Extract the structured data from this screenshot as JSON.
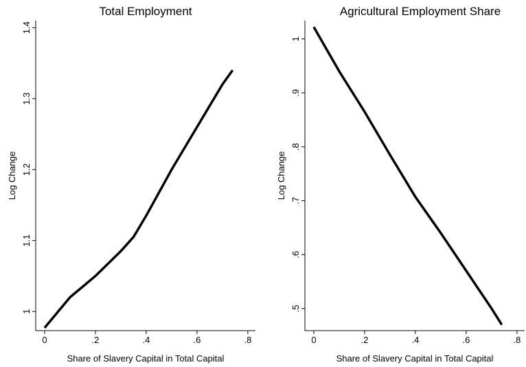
{
  "chart_data": [
    {
      "type": "line",
      "title": "Total Employment",
      "xlabel": "Share of Slavery Capital in Total Capital",
      "ylabel": "Log Change",
      "x": [
        0,
        0.1,
        0.2,
        0.3,
        0.35,
        0.4,
        0.5,
        0.6,
        0.7,
        0.74
      ],
      "series": [
        {
          "color": "#000000",
          "values": [
            0.977,
            1.02,
            1.05,
            1.085,
            1.105,
            1.135,
            1.2,
            1.26,
            1.32,
            1.34
          ]
        }
      ],
      "xlim": [
        -0.035,
        0.83
      ],
      "ylim": [
        0.973,
        1.41
      ],
      "xticks": [
        0,
        {
          "value": 0.2,
          "label": ".2"
        },
        {
          "value": 0.4,
          "label": ".4"
        },
        {
          "value": 0.6,
          "label": ".6"
        },
        {
          "value": 0.8,
          "label": ".8"
        }
      ],
      "yticks": [
        1,
        1.1,
        1.2,
        1.3,
        1.4
      ]
    },
    {
      "type": "line",
      "title": "Agricultural Employment Share",
      "xlabel": "Share of Slavery Capital in Total Capital",
      "ylabel": "Log Change",
      "x": [
        0,
        0.1,
        0.2,
        0.3,
        0.4,
        0.5,
        0.6,
        0.7,
        0.74
      ],
      "series": [
        {
          "color": "#000000",
          "values": [
            1.022,
            0.94,
            0.865,
            0.785,
            0.707,
            0.64,
            0.57,
            0.5,
            0.47
          ]
        }
      ],
      "xlim": [
        -0.035,
        0.83
      ],
      "ylim": [
        0.459,
        1.034
      ],
      "xticks": [
        0,
        {
          "value": 0.2,
          "label": ".2"
        },
        {
          "value": 0.4,
          "label": ".4"
        },
        {
          "value": 0.6,
          "label": ".6"
        },
        {
          "value": 0.8,
          "label": ".8"
        }
      ],
      "yticks": [
        {
          "value": 0.5,
          "label": ".5"
        },
        {
          "value": 0.6,
          "label": ".6"
        },
        {
          "value": 0.7,
          "label": ".7"
        },
        {
          "value": 0.8,
          "label": ".8"
        },
        {
          "value": 0.9,
          "label": ".9"
        },
        1
      ]
    }
  ]
}
